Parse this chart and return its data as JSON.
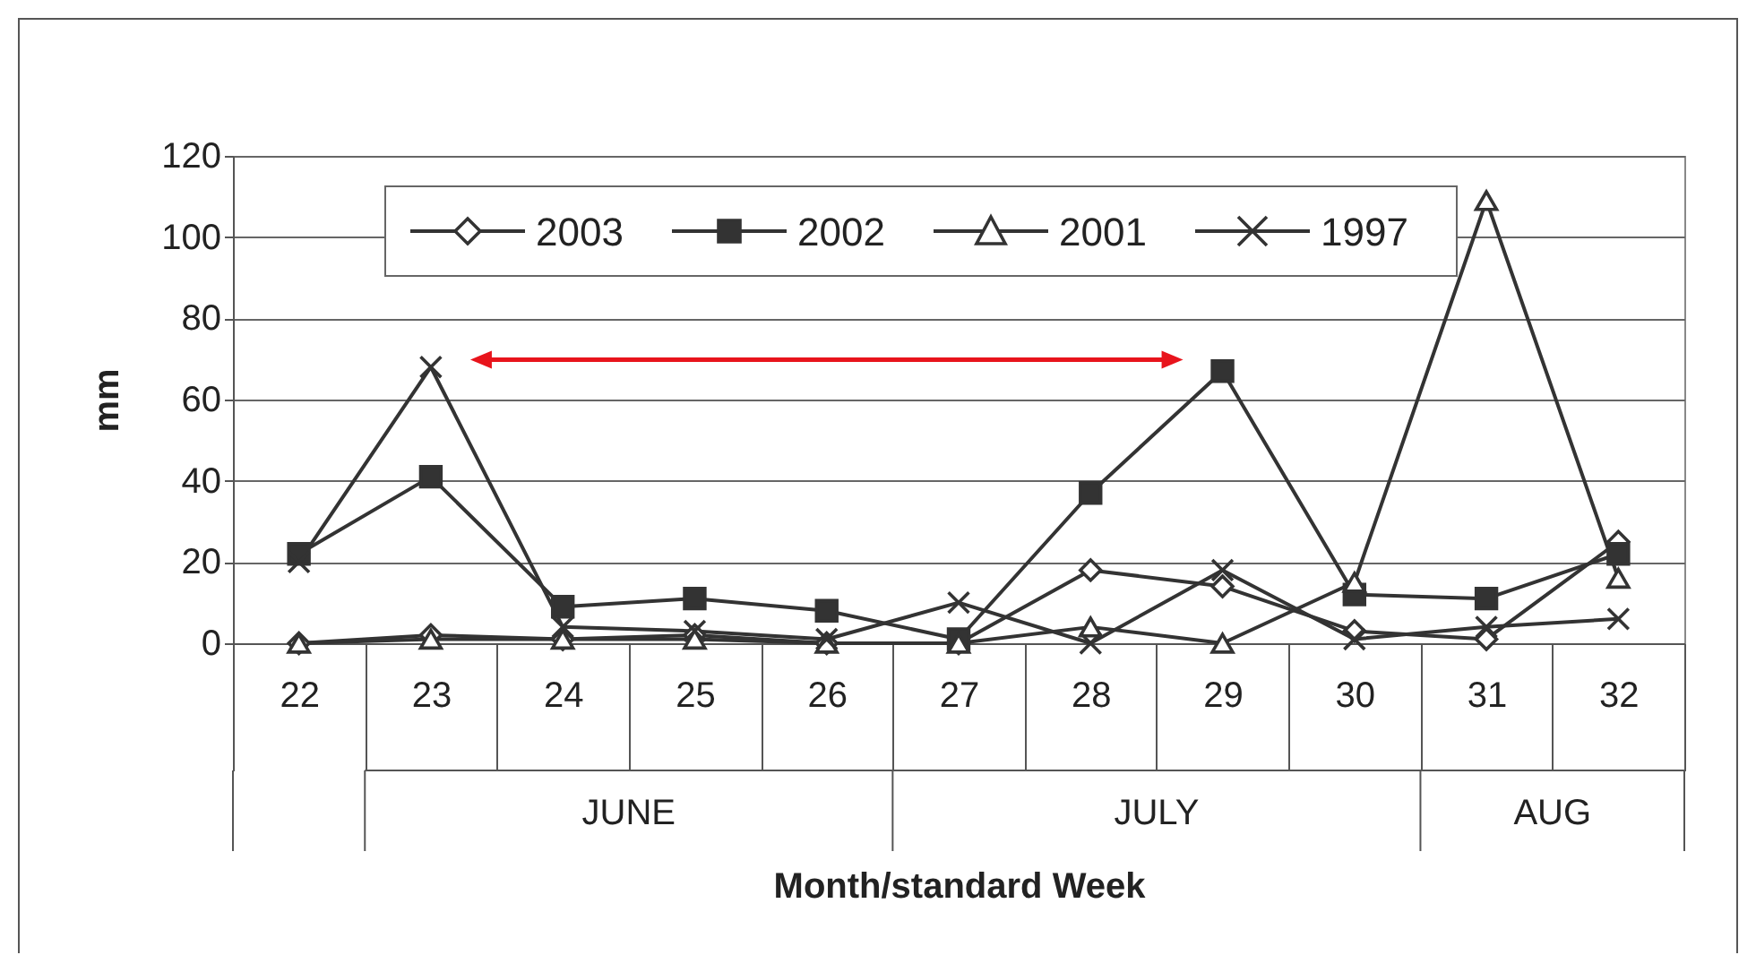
{
  "chart_data": {
    "type": "line",
    "xlabel": "Month/standard Week",
    "ylabel": "mm",
    "categories": [
      "22",
      "23",
      "24",
      "25",
      "26",
      "27",
      "28",
      "29",
      "30",
      "31",
      "32"
    ],
    "series": [
      {
        "name": "2003",
        "color": "#333333",
        "marker": "diamond",
        "values": [
          0,
          2,
          1,
          2,
          0,
          0,
          18,
          14,
          3,
          1,
          25
        ]
      },
      {
        "name": "2002",
        "color": "#333333",
        "marker": "square",
        "values": [
          22,
          41,
          9,
          11,
          8,
          1,
          37,
          67,
          12,
          11,
          22
        ]
      },
      {
        "name": "2001",
        "color": "#333333",
        "marker": "triangle",
        "values": [
          0,
          1,
          1,
          1,
          0,
          0,
          4,
          0,
          15,
          109,
          16
        ]
      },
      {
        "name": "1997",
        "color": "#333333",
        "marker": "cross",
        "values": [
          20,
          68,
          4,
          3,
          1,
          10,
          0,
          18,
          1,
          4,
          6
        ]
      }
    ],
    "annotations": [
      "JUNE",
      "JULY",
      "AUG"
    ],
    "ylim": [
      0,
      120
    ],
    "yticks": [
      0,
      20,
      40,
      60,
      80,
      100,
      120
    ],
    "grid": "y",
    "legend": "top",
    "line_style": "solid"
  }
}
